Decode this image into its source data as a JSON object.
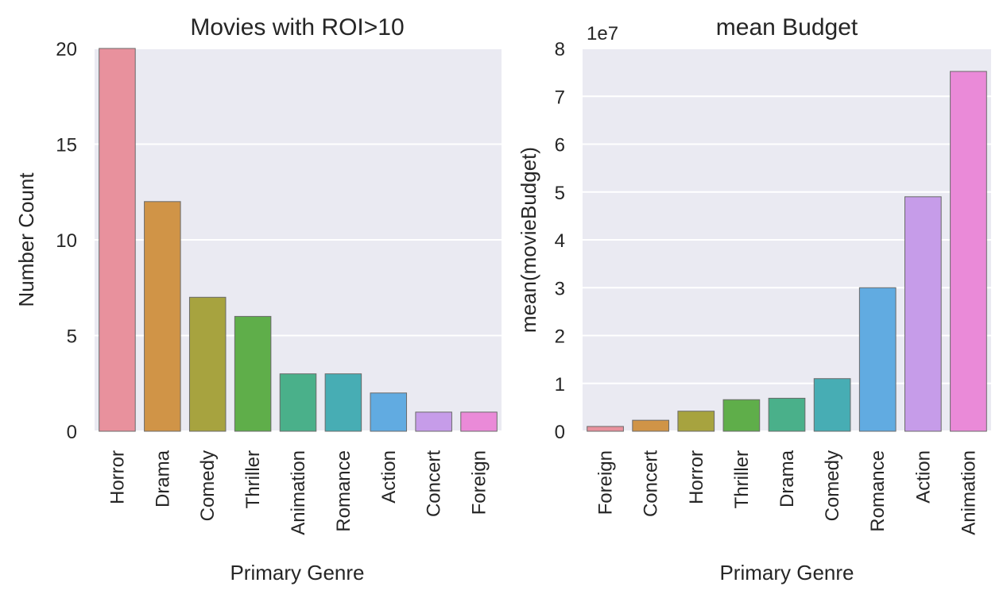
{
  "chart_data": [
    {
      "type": "bar",
      "title": "Movies with ROI>10",
      "xlabel": "Primary Genre",
      "ylabel": "Number Count",
      "categories": [
        "Horror",
        "Drama",
        "Comedy",
        "Thriller",
        "Animation",
        "Romance",
        "Action",
        "Concert",
        "Foreign"
      ],
      "values": [
        20,
        12,
        7,
        6,
        3,
        3,
        2,
        1,
        1
      ],
      "ylim": [
        0,
        20
      ],
      "yticks": [
        "0",
        "5",
        "10",
        "15",
        "20"
      ],
      "colors": [
        "#e8919d",
        "#d09447",
        "#a7a33f",
        "#5fae4a",
        "#4ab08a",
        "#47adb4",
        "#61abe1",
        "#c69ce9",
        "#ea8ad8"
      ],
      "grid": true,
      "background": "#eaeaf2"
    },
    {
      "type": "bar",
      "title": "mean Budget",
      "xlabel": "Primary Genre",
      "ylabel": "mean(movieBudget)",
      "offset_text": "1e7",
      "categories": [
        "Foreign",
        "Concert",
        "Horror",
        "Thriller",
        "Drama",
        "Comedy",
        "Romance",
        "Action",
        "Animation"
      ],
      "values": [
        1000000,
        2300000,
        4200000,
        6600000,
        6900000,
        11000000,
        30000000,
        49000000,
        75200000
      ],
      "ylim": [
        0,
        80000000
      ],
      "yticks": [
        "0",
        "1",
        "2",
        "3",
        "4",
        "5",
        "6",
        "7",
        "8"
      ],
      "colors": [
        "#e8919d",
        "#d09447",
        "#a7a33f",
        "#5fae4a",
        "#4ab08a",
        "#47adb4",
        "#61abe1",
        "#c69ce9",
        "#ea8ad8"
      ],
      "grid": true,
      "background": "#eaeaf2"
    }
  ]
}
